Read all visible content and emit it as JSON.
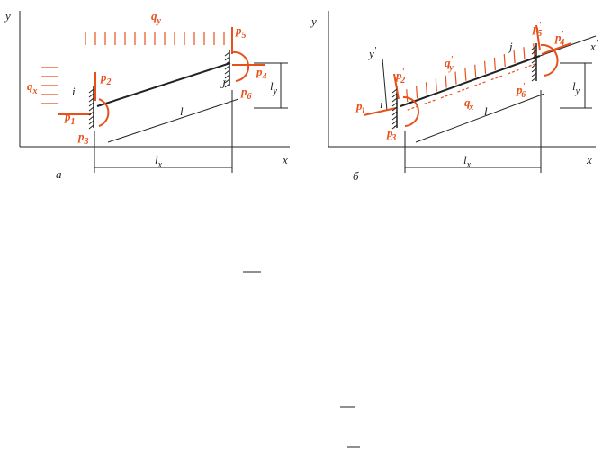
{
  "panel_a": {
    "labels": [
      {
        "base": "y"
      },
      {
        "base": "x"
      },
      {
        "base": "q",
        "sub": "y"
      },
      {
        "base": "p",
        "sub": "5"
      },
      {
        "base": "q",
        "sub": "x"
      },
      {
        "base": "i"
      },
      {
        "base": "p",
        "sub": "2"
      },
      {
        "base": "p",
        "sub": "1"
      },
      {
        "base": "p",
        "sub": "3"
      },
      {
        "base": "J"
      },
      {
        "base": "p",
        "sub": "6"
      },
      {
        "base": "p",
        "sub": "4"
      },
      {
        "base": "l",
        "sub": "y"
      },
      {
        "base": "l"
      },
      {
        "base": "l",
        "sub": "x"
      },
      {
        "base": "a"
      }
    ]
  },
  "panel_b": {
    "labels": [
      {
        "base": "y"
      },
      {
        "base": "x"
      },
      {
        "base": "y",
        "sup": "'"
      },
      {
        "base": "x",
        "sup": "'"
      },
      {
        "base": "p",
        "sup": "'",
        "sub": "2"
      },
      {
        "base": "q",
        "sup": "'",
        "sub": "y"
      },
      {
        "base": "j"
      },
      {
        "base": "p",
        "sup": "'",
        "sub": "5"
      },
      {
        "base": "p",
        "sup": "'",
        "sub": "4"
      },
      {
        "base": "p",
        "sup": "'",
        "sub": "1"
      },
      {
        "base": "i"
      },
      {
        "base": "p",
        "sup": "'",
        "sub": "3"
      },
      {
        "base": "q",
        "sup": "'",
        "sub": "x"
      },
      {
        "base": "l"
      },
      {
        "base": "p",
        "sup": "'",
        "sub": "6"
      },
      {
        "base": "l",
        "sub": "y"
      },
      {
        "base": "l",
        "sub": "x"
      },
      {
        "base": "б"
      }
    ]
  }
}
